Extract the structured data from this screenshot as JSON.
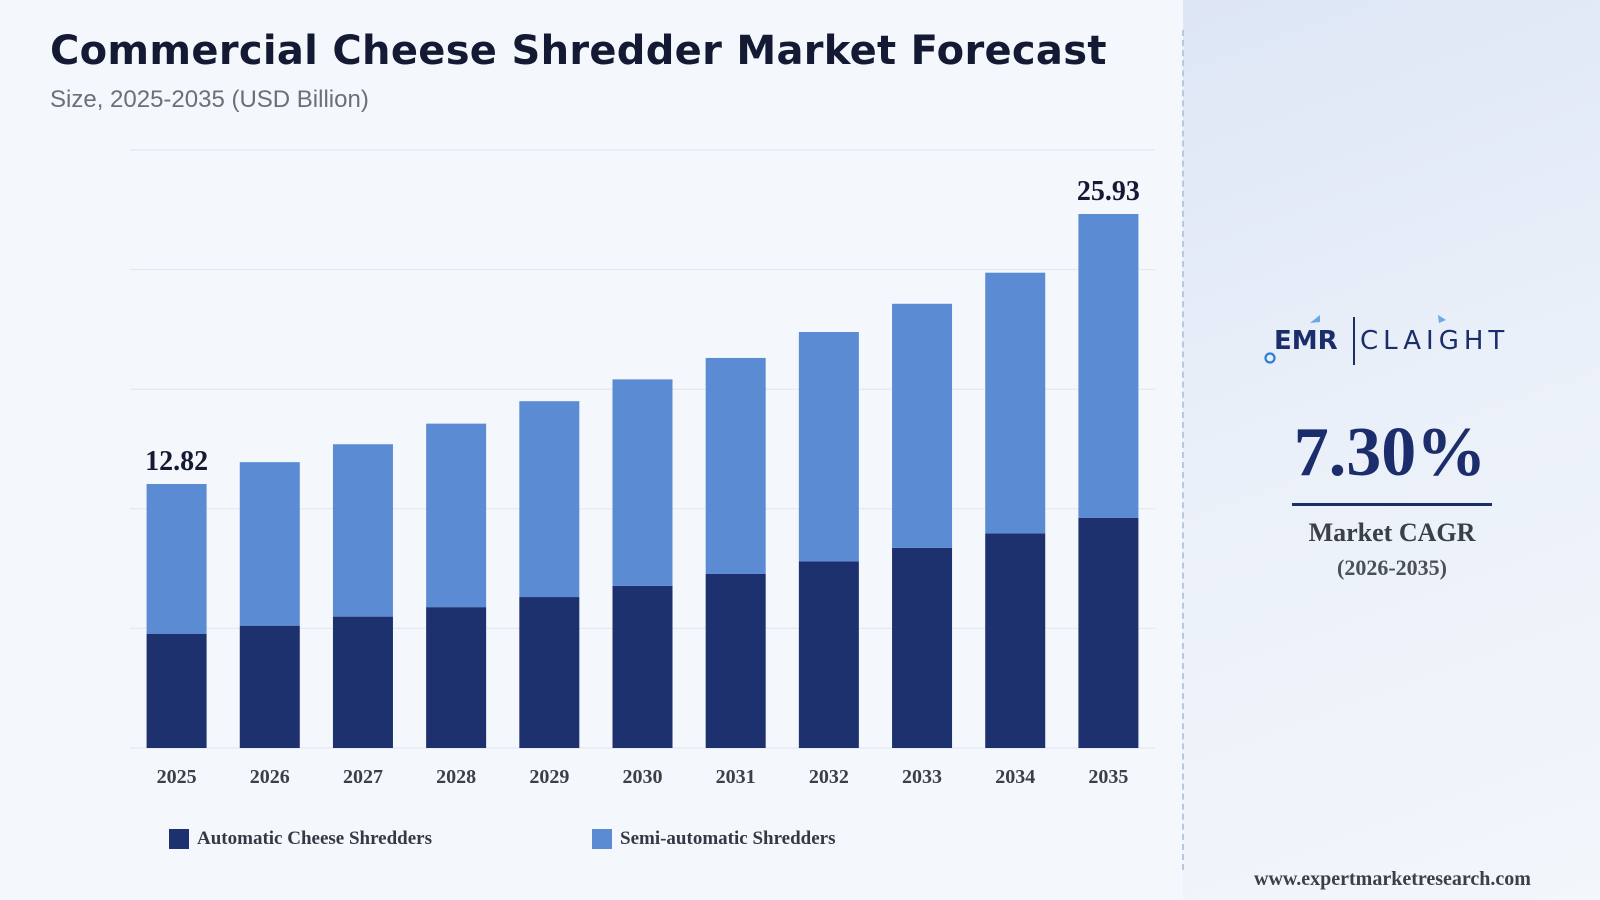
{
  "header": {
    "title": "Commercial Cheese Shredder Market Forecast",
    "subtitle": "Size, 2025-2035 (USD Billion)"
  },
  "chart_data": {
    "type": "bar",
    "stacked": true,
    "categories": [
      "2025",
      "2026",
      "2027",
      "2028",
      "2029",
      "2030",
      "2031",
      "2032",
      "2033",
      "2034",
      "2035"
    ],
    "series": [
      {
        "name": "Automatic Cheese Shredders",
        "color": "#1c316d",
        "values": [
          5.55,
          5.94,
          6.38,
          6.84,
          7.33,
          7.87,
          8.45,
          9.06,
          9.72,
          10.42,
          11.18
        ]
      },
      {
        "name": "Semi-automatic Shredders",
        "color": "#5b8bd3",
        "values": [
          7.27,
          7.94,
          8.37,
          8.91,
          9.51,
          10.03,
          10.49,
          11.14,
          11.85,
          12.66,
          14.75
        ]
      }
    ],
    "data_labels": [
      {
        "category": "2025",
        "text": "12.82"
      },
      {
        "category": "2035",
        "text": "25.93"
      }
    ],
    "ylim": [
      0,
      25.93
    ],
    "grid": true,
    "y_axis_ticks_shown": false,
    "legend_position": "bottom-left"
  },
  "sidebar": {
    "logo": {
      "brand_left": "EMR",
      "brand_right": "CLAIGHT"
    },
    "cagr_value": "7.30%",
    "cagr_label": "Market CAGR",
    "cagr_period": "(2026-2035)",
    "website": "www.expertmarketresearch.com"
  }
}
